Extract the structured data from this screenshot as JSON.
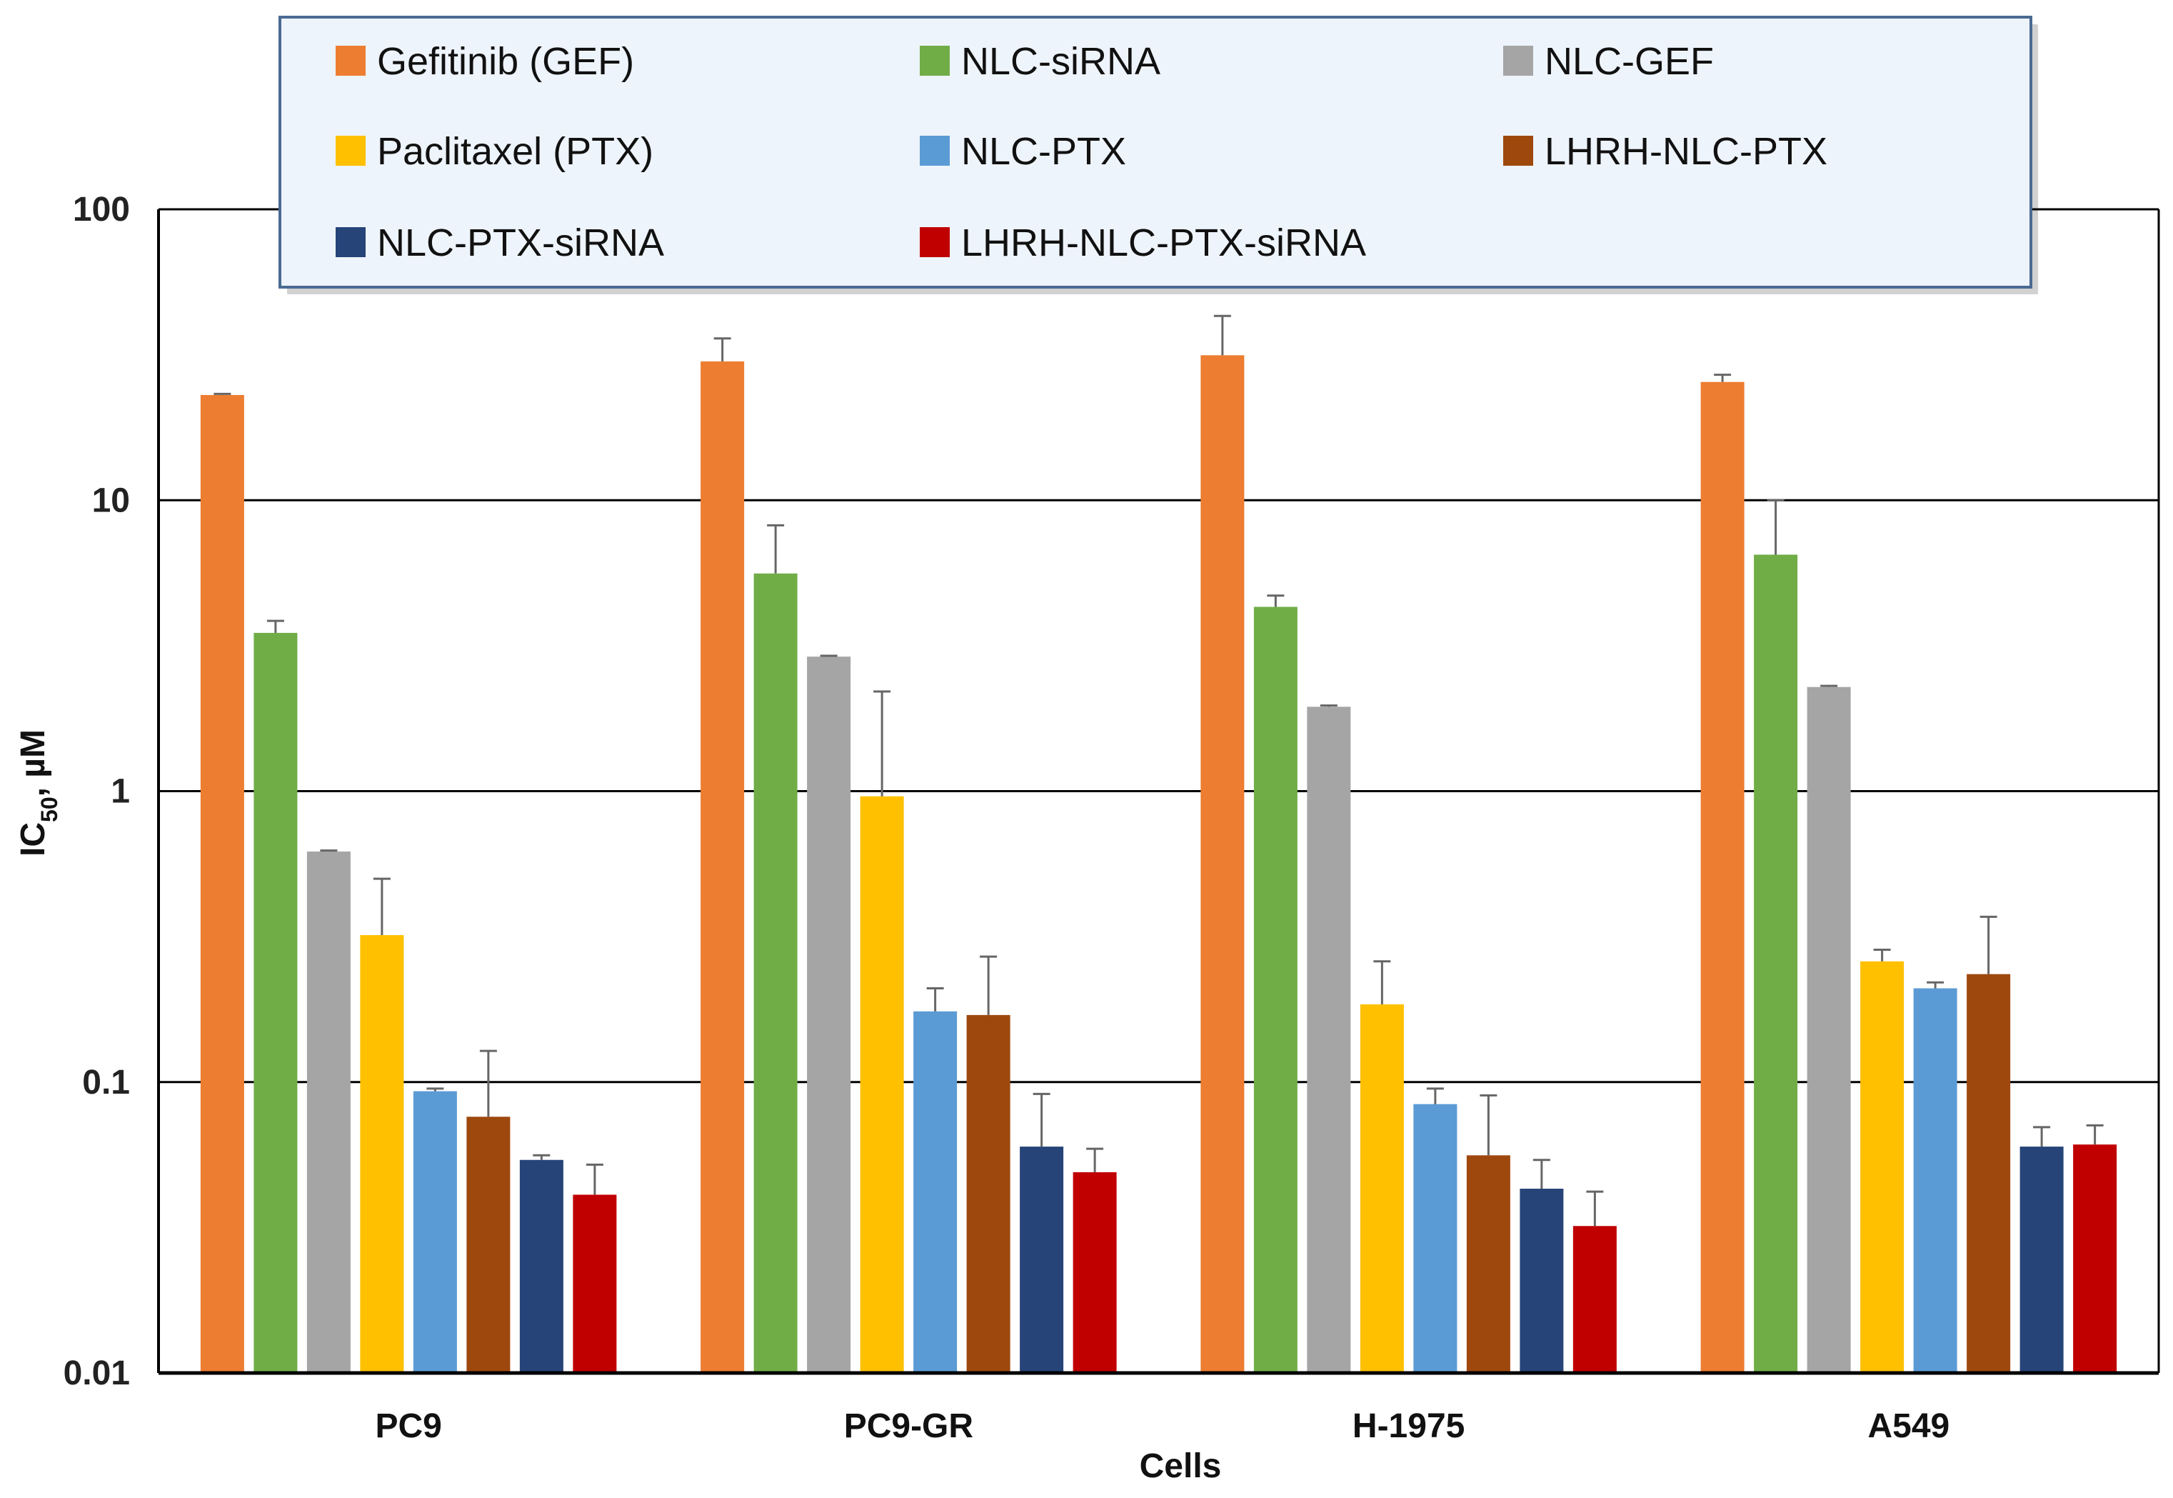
{
  "chart_data": {
    "type": "bar",
    "scale": "log",
    "xlabel": "Cells",
    "ylabel_main": "IC",
    "ylabel_sub": "50",
    "ylabel_unit": ", µM",
    "ylim": [
      0.01,
      100
    ],
    "yticks": [
      0.01,
      0.1,
      1,
      10,
      100
    ],
    "ytick_labels": [
      "0.01",
      "0.1",
      "1",
      "10",
      "100"
    ],
    "grid": true,
    "legend_position": "top",
    "categories": [
      "PC9",
      "PC9-GR",
      "H-1975",
      "A549"
    ],
    "series": [
      {
        "name": "Gefitinib (GEF)",
        "color": "#ED7D31",
        "values": [
          23.0,
          30.0,
          31.5,
          25.5
        ],
        "errors_upper": [
          23.2,
          36.0,
          43.0,
          27.0
        ]
      },
      {
        "name": "NLC-siRNA",
        "color": "#70AD47",
        "values": [
          3.5,
          5.6,
          4.3,
          6.5
        ],
        "errors_upper": [
          3.85,
          8.2,
          4.7,
          10.0
        ]
      },
      {
        "name": "NLC-GEF",
        "color": "#A5A5A5",
        "values": [
          0.62,
          2.9,
          1.95,
          2.28
        ],
        "errors_upper": [
          0.625,
          2.92,
          1.97,
          2.3
        ]
      },
      {
        "name": "Paclitaxel (PTX)",
        "color": "#FFC000",
        "values": [
          0.32,
          0.96,
          0.185,
          0.26
        ],
        "errors_upper": [
          0.5,
          2.2,
          0.26,
          0.285
        ]
      },
      {
        "name": "NLC-PTX",
        "color": "#5B9BD5",
        "values": [
          0.093,
          0.175,
          0.084,
          0.21
        ],
        "errors_upper": [
          0.095,
          0.21,
          0.095,
          0.22
        ]
      },
      {
        "name": "LHRH-NLC-PTX",
        "color": "#9E480E",
        "values": [
          0.076,
          0.17,
          0.056,
          0.235
        ],
        "errors_upper": [
          0.128,
          0.27,
          0.09,
          0.37
        ]
      },
      {
        "name": "NLC-PTX-siRNA",
        "color": "#264478",
        "values": [
          0.054,
          0.06,
          0.043,
          0.06
        ],
        "errors_upper": [
          0.056,
          0.091,
          0.054,
          0.07
        ]
      },
      {
        "name": "LHRH-NLC-PTX-siRNA",
        "color": "#C00000",
        "values": [
          0.041,
          0.049,
          0.032,
          0.061
        ],
        "errors_upper": [
          0.052,
          0.059,
          0.042,
          0.071
        ]
      }
    ]
  }
}
